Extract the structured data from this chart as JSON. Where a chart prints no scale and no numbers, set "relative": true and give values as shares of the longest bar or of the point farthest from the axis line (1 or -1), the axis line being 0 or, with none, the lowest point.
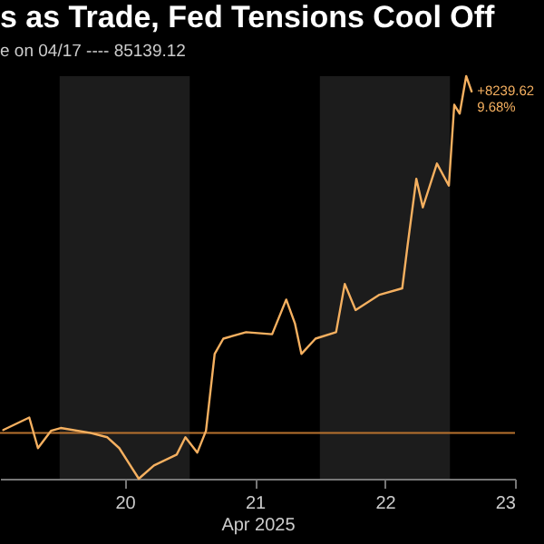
{
  "chart_data": {
    "type": "line",
    "title": "s as Trade, Fed Tensions Cool Off",
    "subtitle": "e on 04/17 ---- 85139.12",
    "xlabel": "Apr 2025",
    "relative": true,
    "x": [
      "2025-04-19T01:36",
      "2025-04-19T06:24",
      "2025-04-19T08:00",
      "2025-04-19T10:24",
      "2025-04-19T12:12",
      "2025-04-19T17:36",
      "2025-04-19T20:48",
      "2025-04-19T23:00",
      "2025-04-20T02:36",
      "2025-04-20T05:24",
      "2025-04-20T09:36",
      "2025-04-20T11:12",
      "2025-04-20T13:24",
      "2025-04-20T15:00",
      "2025-04-20T16:36",
      "2025-04-20T18:12",
      "2025-04-20T22:24",
      "2025-04-21T03:12",
      "2025-04-21T05:48",
      "2025-04-21T07:24",
      "2025-04-21T08:36",
      "2025-04-21T11:12",
      "2025-04-21T15:00",
      "2025-04-21T16:36",
      "2025-04-21T18:36",
      "2025-04-21T23:00",
      "2025-04-22T03:12",
      "2025-04-22T04:12",
      "2025-04-22T05:48",
      "2025-04-22T07:00",
      "2025-04-22T09:36",
      "2025-04-22T11:48",
      "2025-04-22T12:48",
      "2025-04-22T13:48",
      "2025-04-22T15:00",
      "2025-04-22T16:00"
    ],
    "series": [
      {
        "color": "#f5b060",
        "values": [
          0.121,
          0.152,
          0.076,
          0.119,
          0.126,
          0.114,
          0.103,
          0.076,
          0,
          0.033,
          0.06,
          0.103,
          0.065,
          0.119,
          0.31,
          0.348,
          0.364,
          0.359,
          0.445,
          0.386,
          0.31,
          0.348,
          0.364,
          0.484,
          0.419,
          0.457,
          0.473,
          0.581,
          0.745,
          0.674,
          0.783,
          0.728,
          0.929,
          0.907,
          1,
          0.962
        ]
      }
    ],
    "xlim": [
      "2025-04-19T01:00",
      "2025-04-23T00:00"
    ],
    "xticks": [
      {
        "value": "2025-04-20T00:00",
        "label": "20"
      },
      {
        "value": "2025-04-21T00:00",
        "label": "21"
      },
      {
        "value": "2025-04-22T00:00",
        "label": "22"
      },
      {
        "value": "2025-04-23T00:00",
        "label": "23"
      }
    ],
    "tick_labels": "x",
    "ref_lines": [
      {
        "axis": "y",
        "value": 0.114,
        "color": "#b8722e"
      }
    ],
    "bands": [
      {
        "axis": "x",
        "from": "2025-04-19T12:00",
        "to": "2025-04-20T12:00",
        "color": "#1c1c1c"
      },
      {
        "axis": "x",
        "from": "2025-04-21T12:00",
        "to": "2025-04-22T12:00",
        "color": "#1c1c1c"
      }
    ],
    "annotations": [
      {
        "text": "+8239.62",
        "x": "2025-04-22T16:00",
        "y": 0.962
      },
      {
        "text": "9.68%",
        "x": "2025-04-22T16:00",
        "y": 0.962
      }
    ]
  }
}
